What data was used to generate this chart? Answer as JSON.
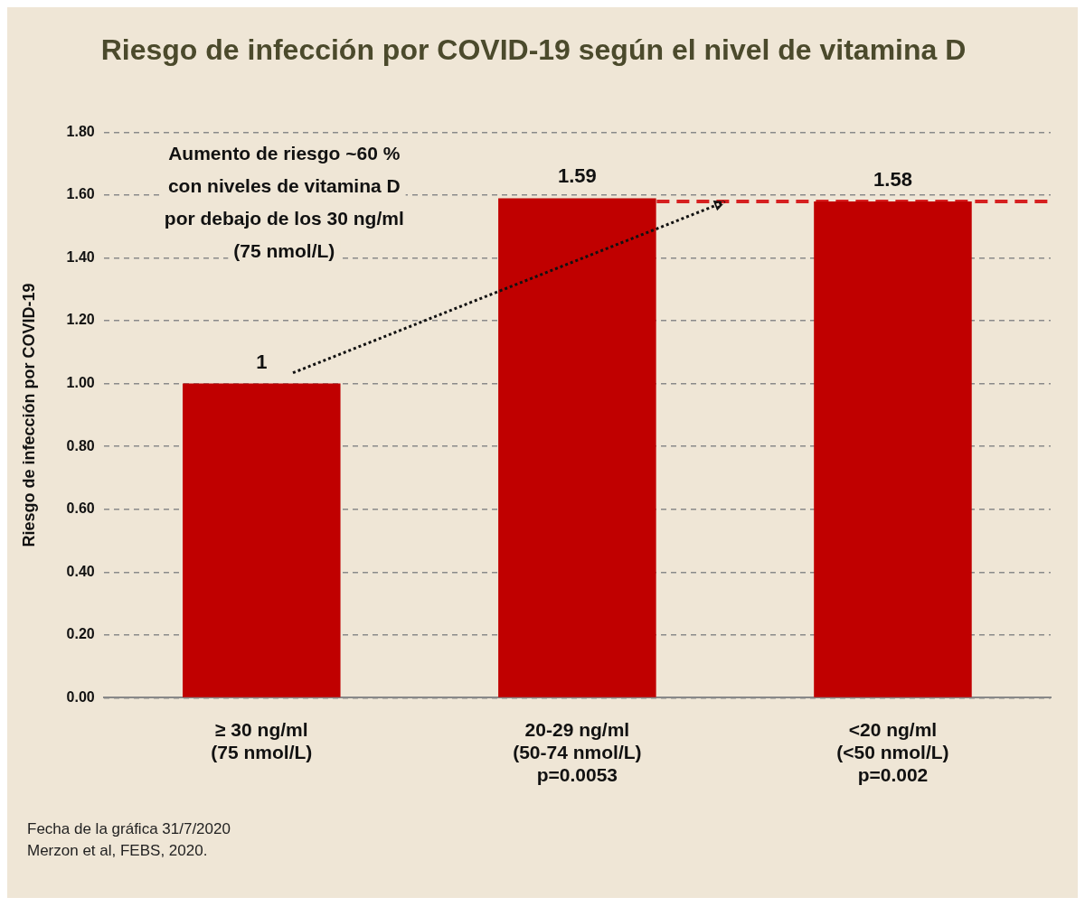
{
  "chart_data": {
    "type": "bar",
    "title": "Riesgo de infección por COVID-19 según el nivel de vitamina D",
    "ylabel": "Riesgo de infección por COVID-19",
    "categories": [
      "≥ 30 ng/ml\n(75 nmol/L)",
      "20-29 ng/ml\n(50-74 nmol/L)\np=0.0053",
      "<20 ng/ml\n(<50 nmol/L)\np=0.002"
    ],
    "values": [
      1,
      1.59,
      1.58
    ],
    "color": "#c00000",
    "data_labels": true,
    "ylim": [
      0,
      1.8
    ],
    "yticks": [
      {
        "value": 0,
        "label": "0.00"
      },
      {
        "value": 0.2,
        "label": "0.20"
      },
      {
        "value": 0.4,
        "label": "0.40"
      },
      {
        "value": 0.6,
        "label": "0.60"
      },
      {
        "value": 0.8,
        "label": "0.80"
      },
      {
        "value": 1,
        "label": "1.00"
      },
      {
        "value": 1.2,
        "label": "1.20"
      },
      {
        "value": 1.4,
        "label": "1.40"
      },
      {
        "value": 1.6,
        "label": "1.60"
      },
      {
        "value": 1.8,
        "label": "1.80"
      }
    ],
    "grid": "y",
    "legend": false,
    "ref_lines": [
      {
        "axis": "y",
        "value": 1.58,
        "color": "#d62020",
        "line_style": "dashed"
      }
    ],
    "annotations": [
      "Aumento de riesgo ~60 % con niveles de vitamina D por debajo de los 30 ng/ml (75 nmol/L)",
      "Fecha de la gráfica 31/7/2020",
      "Merzon et al, FEBS, 2020."
    ]
  }
}
